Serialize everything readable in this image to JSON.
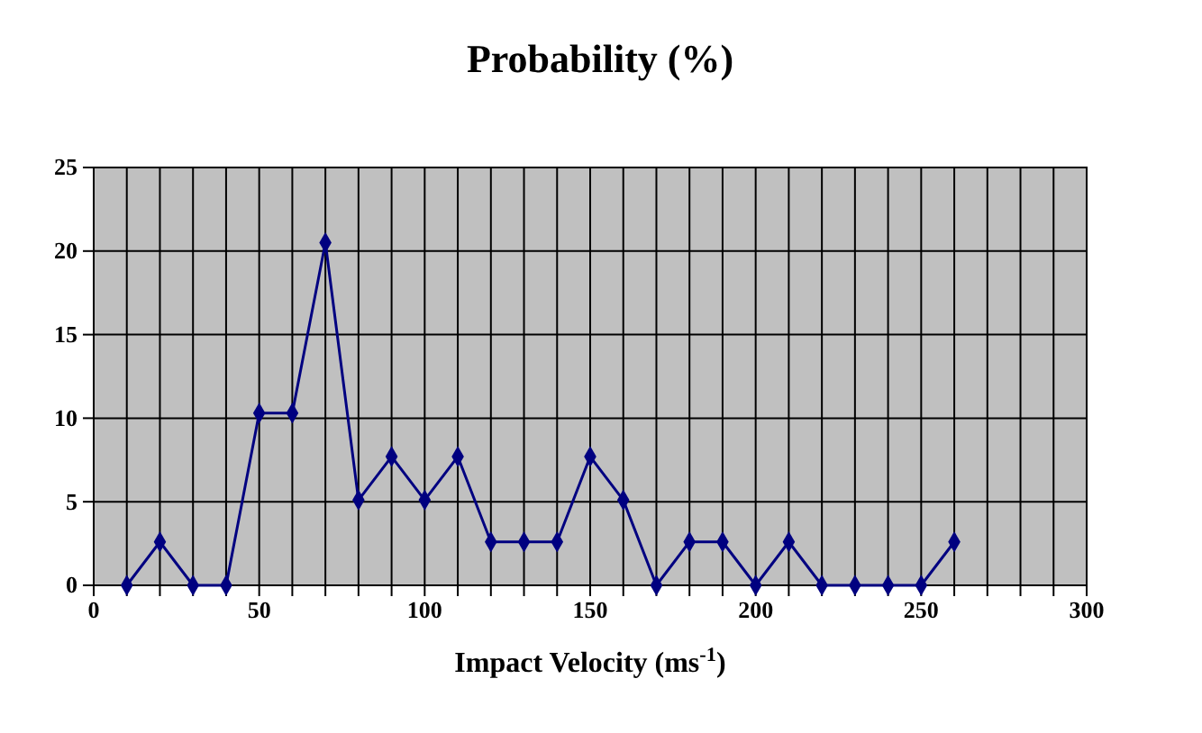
{
  "chart_data": {
    "type": "line",
    "title": "Probability (%)",
    "xlabel": "Impact Velocity (ms$^{-1}$)",
    "x": [
      10,
      20,
      30,
      40,
      50,
      60,
      70,
      80,
      90,
      100,
      110,
      120,
      130,
      140,
      150,
      160,
      170,
      180,
      190,
      200,
      210,
      220,
      230,
      240,
      250,
      260
    ],
    "series": [
      {
        "color": "#000080",
        "values": [
          0,
          2.6,
          0,
          0,
          10.3,
          10.3,
          20.5,
          5.1,
          7.7,
          5.1,
          7.7,
          2.6,
          2.6,
          2.6,
          7.7,
          5.1,
          0,
          2.6,
          2.6,
          0,
          2.6,
          0,
          0,
          0,
          0,
          2.6
        ]
      }
    ],
    "xlim": [
      0,
      300
    ],
    "xticks": [
      0,
      {
        "value": 10,
        "label": null
      },
      {
        "value": 20,
        "label": null
      },
      {
        "value": 30,
        "label": null
      },
      {
        "value": 40,
        "label": null
      },
      50,
      {
        "value": 60,
        "label": null
      },
      {
        "value": 70,
        "label": null
      },
      {
        "value": 80,
        "label": null
      },
      {
        "value": 90,
        "label": null
      },
      100,
      {
        "value": 110,
        "label": null
      },
      {
        "value": 120,
        "label": null
      },
      {
        "value": 130,
        "label": null
      },
      {
        "value": 140,
        "label": null
      },
      150,
      {
        "value": 160,
        "label": null
      },
      {
        "value": 170,
        "label": null
      },
      {
        "value": 180,
        "label": null
      },
      {
        "value": 190,
        "label": null
      },
      200,
      {
        "value": 210,
        "label": null
      },
      {
        "value": 220,
        "label": null
      },
      {
        "value": 230,
        "label": null
      },
      {
        "value": 240,
        "label": null
      },
      250,
      {
        "value": 260,
        "label": null
      },
      {
        "value": 270,
        "label": null
      },
      {
        "value": 280,
        "label": null
      },
      {
        "value": 290,
        "label": null
      },
      300
    ],
    "ylim": [
      0,
      25
    ],
    "yticks": [
      0,
      5,
      10,
      15,
      20,
      25
    ],
    "grid": true,
    "marker": "diamond",
    "line_style": "solid"
  }
}
